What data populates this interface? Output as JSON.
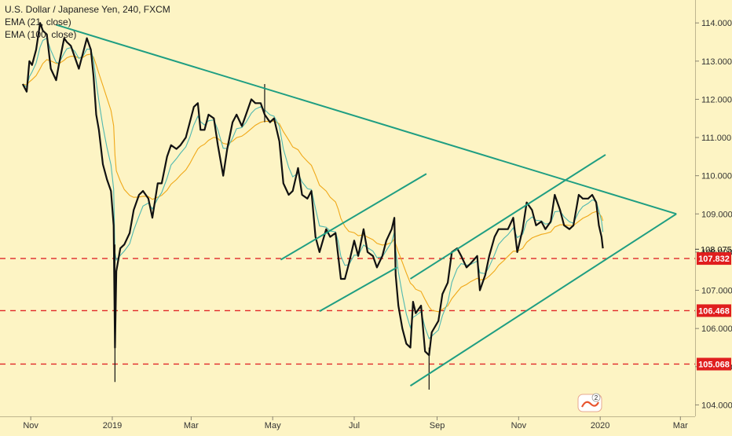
{
  "chart_data": {
    "type": "line",
    "title": "U.S. Dollar / Japanese Yen, 240, FXCM",
    "indicators": [
      "EMA (21, close)",
      "EMA (100, close)"
    ],
    "colors": {
      "background": "#fdf4c4",
      "price": "#111111",
      "ema21": "#4fb8b0",
      "ema100": "#f0a818",
      "trendline": "#1f9e82",
      "level": "#e02828",
      "level_label_bg": "#e01e1e",
      "last_price_label": "#111111"
    },
    "x_axis": {
      "labels": [
        "Nov",
        "2019",
        "Mar",
        "May",
        "Jul",
        "Sep",
        "Nov",
        "2020",
        "Mar"
      ],
      "values": [
        "2018-11-01",
        "2019-01-01",
        "2019-03-01",
        "2019-05-01",
        "2019-07-01",
        "2019-09-01",
        "2019-11-01",
        "2020-01-01",
        "2020-03-01"
      ]
    },
    "y_axis": {
      "ticks": [
        "104.000",
        "105.000",
        "106.000",
        "107.000",
        "108.000",
        "109.000",
        "110.000",
        "111.000",
        "112.000",
        "113.000",
        "114.000"
      ],
      "range": [
        103.7,
        114.6
      ],
      "side": "right"
    },
    "last_price": "108.075",
    "horizontal_levels": [
      "107.832",
      "106.468",
      "105.068"
    ],
    "price_path": [
      [
        "2018-10-26",
        112.4
      ],
      [
        "2018-10-29",
        112.2
      ],
      [
        "2018-10-31",
        113.0
      ],
      [
        "2018-11-02",
        112.9
      ],
      [
        "2018-11-05",
        113.3
      ],
      [
        "2018-11-08",
        114.0
      ],
      [
        "2018-11-10",
        113.8
      ],
      [
        "2018-11-13",
        113.7
      ],
      [
        "2018-11-16",
        112.8
      ],
      [
        "2018-11-20",
        112.5
      ],
      [
        "2018-11-22",
        112.9
      ],
      [
        "2018-11-26",
        113.6
      ],
      [
        "2018-11-28",
        113.5
      ],
      [
        "2018-12-01",
        113.4
      ],
      [
        "2018-12-04",
        113.1
      ],
      [
        "2018-12-07",
        112.8
      ],
      [
        "2018-12-10",
        113.2
      ],
      [
        "2018-12-13",
        113.6
      ],
      [
        "2018-12-16",
        113.3
      ],
      [
        "2018-12-18",
        112.6
      ],
      [
        "2018-12-20",
        111.6
      ],
      [
        "2018-12-22",
        111.2
      ],
      [
        "2018-12-25",
        110.3
      ],
      [
        "2018-12-28",
        109.9
      ],
      [
        "2018-12-31",
        109.6
      ],
      [
        "2019-01-02",
        108.7
      ],
      [
        "2019-01-03",
        105.5
      ],
      [
        "2019-01-04",
        107.5
      ],
      [
        "2019-01-07",
        108.1
      ],
      [
        "2019-01-10",
        108.2
      ],
      [
        "2019-01-14",
        108.5
      ],
      [
        "2019-01-17",
        109.1
      ],
      [
        "2019-01-21",
        109.5
      ],
      [
        "2019-01-24",
        109.6
      ],
      [
        "2019-01-28",
        109.4
      ],
      [
        "2019-01-31",
        108.9
      ],
      [
        "2019-02-04",
        109.8
      ],
      [
        "2019-02-07",
        109.8
      ],
      [
        "2019-02-11",
        110.5
      ],
      [
        "2019-02-14",
        110.8
      ],
      [
        "2019-02-18",
        110.7
      ],
      [
        "2019-02-21",
        110.8
      ],
      [
        "2019-02-25",
        111.0
      ],
      [
        "2019-02-28",
        111.4
      ],
      [
        "2019-03-03",
        111.8
      ],
      [
        "2019-03-06",
        111.9
      ],
      [
        "2019-03-08",
        111.2
      ],
      [
        "2019-03-11",
        111.2
      ],
      [
        "2019-03-14",
        111.6
      ],
      [
        "2019-03-18",
        111.5
      ],
      [
        "2019-03-21",
        110.8
      ],
      [
        "2019-03-25",
        110.0
      ],
      [
        "2019-03-28",
        110.7
      ],
      [
        "2019-04-01",
        111.4
      ],
      [
        "2019-04-04",
        111.6
      ],
      [
        "2019-04-08",
        111.3
      ],
      [
        "2019-04-11",
        111.6
      ],
      [
        "2019-04-15",
        112.0
      ],
      [
        "2019-04-18",
        111.9
      ],
      [
        "2019-04-22",
        111.9
      ],
      [
        "2019-04-25",
        111.6
      ],
      [
        "2019-04-29",
        111.4
      ],
      [
        "2019-05-02",
        111.5
      ],
      [
        "2019-05-06",
        110.9
      ],
      [
        "2019-05-09",
        109.8
      ],
      [
        "2019-05-13",
        109.5
      ],
      [
        "2019-05-16",
        109.6
      ],
      [
        "2019-05-20",
        110.2
      ],
      [
        "2019-05-23",
        109.5
      ],
      [
        "2019-05-27",
        109.4
      ],
      [
        "2019-05-30",
        109.6
      ],
      [
        "2019-06-02",
        108.4
      ],
      [
        "2019-06-05",
        108.0
      ],
      [
        "2019-06-10",
        108.6
      ],
      [
        "2019-06-13",
        108.4
      ],
      [
        "2019-06-17",
        108.5
      ],
      [
        "2019-06-19",
        107.9
      ],
      [
        "2019-06-21",
        107.3
      ],
      [
        "2019-06-24",
        107.3
      ],
      [
        "2019-06-27",
        107.7
      ],
      [
        "2019-07-01",
        108.3
      ],
      [
        "2019-07-04",
        107.9
      ],
      [
        "2019-07-08",
        108.6
      ],
      [
        "2019-07-11",
        108.0
      ],
      [
        "2019-07-15",
        107.9
      ],
      [
        "2019-07-18",
        107.6
      ],
      [
        "2019-07-22",
        107.9
      ],
      [
        "2019-07-25",
        108.3
      ],
      [
        "2019-07-29",
        108.6
      ],
      [
        "2019-07-31",
        108.9
      ],
      [
        "2019-08-01",
        107.4
      ],
      [
        "2019-08-03",
        106.6
      ],
      [
        "2019-08-06",
        106.0
      ],
      [
        "2019-08-09",
        105.6
      ],
      [
        "2019-08-12",
        105.5
      ],
      [
        "2019-08-14",
        106.7
      ],
      [
        "2019-08-16",
        106.4
      ],
      [
        "2019-08-20",
        106.6
      ],
      [
        "2019-08-23",
        105.4
      ],
      [
        "2019-08-26",
        105.3
      ],
      [
        "2019-08-28",
        105.9
      ],
      [
        "2019-09-02",
        106.2
      ],
      [
        "2019-09-05",
        106.9
      ],
      [
        "2019-09-09",
        107.2
      ],
      [
        "2019-09-12",
        108.0
      ],
      [
        "2019-09-16",
        108.1
      ],
      [
        "2019-09-19",
        107.9
      ],
      [
        "2019-09-23",
        107.6
      ],
      [
        "2019-09-26",
        107.7
      ],
      [
        "2019-10-01",
        107.9
      ],
      [
        "2019-10-03",
        107.0
      ],
      [
        "2019-10-07",
        107.4
      ],
      [
        "2019-10-10",
        107.9
      ],
      [
        "2019-10-14",
        108.4
      ],
      [
        "2019-10-17",
        108.6
      ],
      [
        "2019-10-21",
        108.6
      ],
      [
        "2019-10-24",
        108.6
      ],
      [
        "2019-10-28",
        108.9
      ],
      [
        "2019-10-31",
        108.0
      ],
      [
        "2019-11-04",
        108.6
      ],
      [
        "2019-11-07",
        109.3
      ],
      [
        "2019-11-11",
        109.1
      ],
      [
        "2019-11-14",
        108.7
      ],
      [
        "2019-11-18",
        108.8
      ],
      [
        "2019-11-21",
        108.6
      ],
      [
        "2019-11-25",
        108.8
      ],
      [
        "2019-11-28",
        109.5
      ],
      [
        "2019-12-02",
        109.1
      ],
      [
        "2019-12-05",
        108.7
      ],
      [
        "2019-12-09",
        108.6
      ],
      [
        "2019-12-12",
        108.7
      ],
      [
        "2019-12-16",
        109.5
      ],
      [
        "2019-12-19",
        109.4
      ],
      [
        "2019-12-23",
        109.4
      ],
      [
        "2019-12-26",
        109.5
      ],
      [
        "2019-12-29",
        109.3
      ],
      [
        "2019-12-31",
        108.7
      ],
      [
        "2020-01-02",
        108.4
      ],
      [
        "2020-01-03",
        108.1
      ]
    ],
    "trendlines": [
      {
        "name": "descending-resistance",
        "from": [
          "2018-11-20",
          113.95
        ],
        "to": [
          "2020-02-27",
          109.0
        ]
      },
      {
        "name": "ascending-support",
        "from": [
          "2019-08-12",
          104.5
        ],
        "to": [
          "2020-02-27",
          109.0
        ]
      },
      {
        "name": "upper-channel",
        "from": [
          "2019-08-12",
          107.3
        ],
        "to": [
          "2020-01-05",
          110.55
        ]
      },
      {
        "name": "mid-channel-lower",
        "from": [
          "2019-06-05",
          106.45
        ],
        "to": [
          "2019-08-02",
          107.6
        ]
      },
      {
        "name": "mid-channel-upper",
        "from": [
          "2019-05-07",
          107.8
        ],
        "to": [
          "2019-08-24",
          110.05
        ]
      }
    ]
  }
}
